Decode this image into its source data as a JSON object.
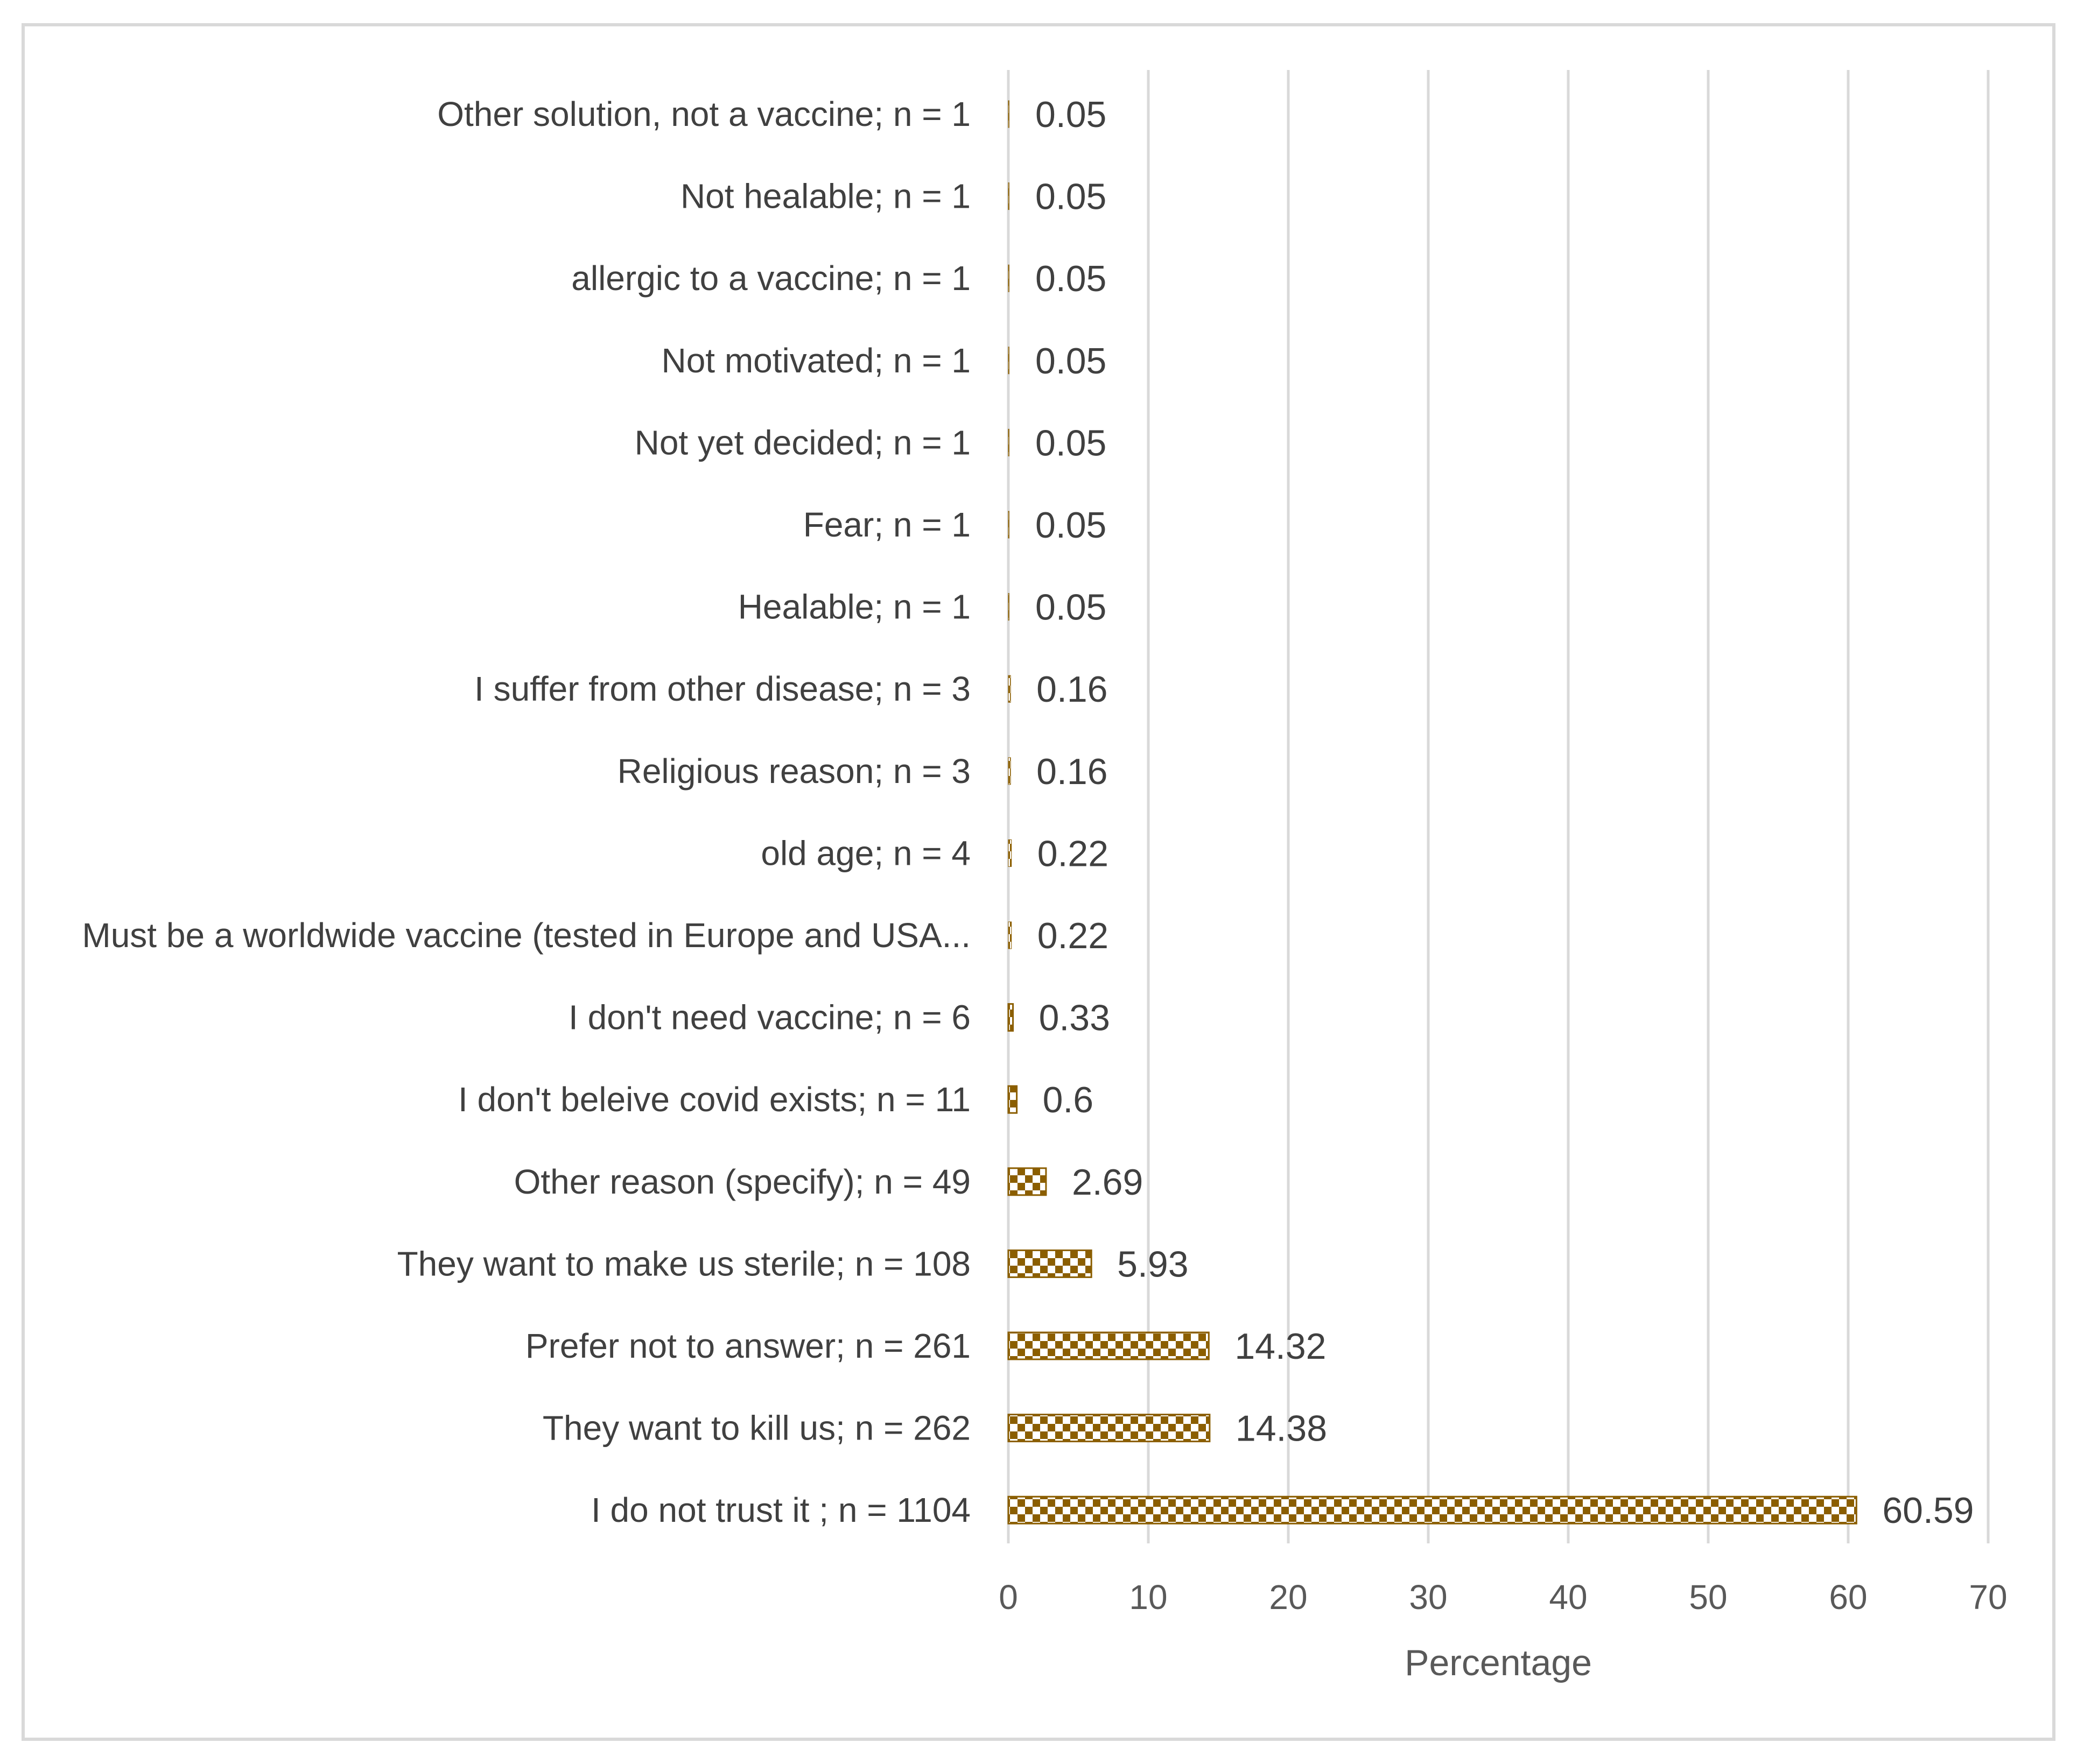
{
  "chart_data": {
    "type": "bar",
    "orientation": "horizontal",
    "title": "",
    "xlabel": "Percentage",
    "ylabel": "",
    "xlim": [
      0,
      70
    ],
    "x_ticks": [
      0,
      10,
      20,
      30,
      40,
      50,
      60,
      70
    ],
    "grid": "vertical",
    "bar_color": "#8B5E00",
    "bar_pattern": "checkerboard",
    "categories": [
      "Other solution, not a vaccine; n = 1",
      "Not healable; n = 1",
      "allergic to a vaccine; n = 1",
      "Not motivated; n = 1",
      "Not yet decided; n = 1",
      "Fear; n = 1",
      "Healable; n = 1",
      "I suffer from other disease; n = 3",
      "Religious reason; n = 3",
      "old age; n = 4",
      "Must be a worldwide vaccine (tested in Europe and USA...",
      "I don't need vaccine; n = 6",
      "I don't beleive covid exists; n = 11",
      "Other reason (specify); n = 49",
      "They want to make us sterile; n = 108",
      "Prefer not to answer; n = 261",
      "They want to kill us; n = 262",
      "I do not trust it ; n = 1104"
    ],
    "values": [
      0.05,
      0.05,
      0.05,
      0.05,
      0.05,
      0.05,
      0.05,
      0.16,
      0.16,
      0.22,
      0.22,
      0.33,
      0.6,
      2.69,
      5.93,
      14.32,
      14.38,
      60.59
    ],
    "value_labels": [
      "0.05",
      "0.05",
      "0.05",
      "0.05",
      "0.05",
      "0.05",
      "0.05",
      "0.16",
      "0.16",
      "0.22",
      "0.22",
      "0.33",
      "0.6",
      "2.69",
      "5.93",
      "14.32",
      "14.38",
      "60.59"
    ]
  }
}
